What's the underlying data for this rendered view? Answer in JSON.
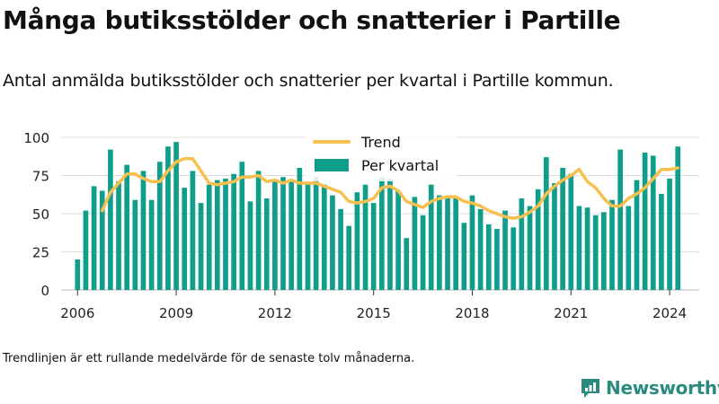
{
  "title": "Många butiksstölder och snatterier i Partille",
  "subtitle": "Antal anmälda butiksstölder och snatterier per kvartal i Partille kommun.",
  "footnote": "Trendlinjen är ett rullande medelvärde för de senaste tolv månaderna.",
  "brand": {
    "name": "Newsworthy"
  },
  "colors": {
    "bar": "#0f9e8c",
    "trend": "#f7c04e",
    "grid": "#dddddd",
    "brand": "#2a8a80"
  },
  "chart_data": {
    "type": "bar",
    "title": "Många butiksstölder och snatterier i Partille",
    "xlabel": "",
    "ylabel": "",
    "x_start": 2006,
    "quarters_per_year": 4,
    "xlim": [
      2005.5,
      2024.9
    ],
    "ylim": [
      0,
      100
    ],
    "yticks": [
      0,
      25,
      50,
      75,
      100
    ],
    "xticks": [
      2006,
      2009,
      2012,
      2015,
      2018,
      2021,
      2024
    ],
    "grid": "horizontal",
    "legend": "top-center",
    "series": [
      {
        "name": "Per kvartal",
        "type": "bar",
        "values": [
          20,
          52,
          68,
          65,
          92,
          71,
          82,
          59,
          78,
          59,
          84,
          94,
          97,
          67,
          78,
          57,
          69,
          72,
          73,
          76,
          84,
          58,
          78,
          60,
          72,
          74,
          72,
          80,
          70,
          74,
          69,
          62,
          53,
          42,
          64,
          69,
          57,
          74,
          73,
          65,
          34,
          61,
          49,
          69,
          62,
          61,
          61,
          44,
          62,
          53,
          43,
          40,
          52,
          41,
          60,
          55,
          66,
          87,
          70,
          80,
          76,
          55,
          54,
          49,
          51,
          59,
          92,
          55,
          72,
          90,
          88,
          63,
          73,
          94
        ]
      },
      {
        "name": "Trend",
        "type": "line",
        "values": [
          null,
          null,
          null,
          52,
          64,
          70,
          76,
          76,
          73,
          71,
          71,
          78,
          84,
          86,
          86,
          78,
          70,
          69,
          70,
          71,
          74,
          74,
          75,
          71,
          72,
          70,
          72,
          70,
          70,
          70,
          68,
          66,
          64,
          58,
          57,
          58,
          60,
          67,
          68,
          65,
          58,
          56,
          54,
          58,
          60,
          61,
          61,
          58,
          57,
          55,
          52,
          50,
          48,
          47,
          48,
          51,
          55,
          63,
          68,
          72,
          75,
          79,
          71,
          67,
          60,
          55,
          55,
          60,
          63,
          67,
          73,
          79,
          79,
          80
        ]
      }
    ]
  }
}
